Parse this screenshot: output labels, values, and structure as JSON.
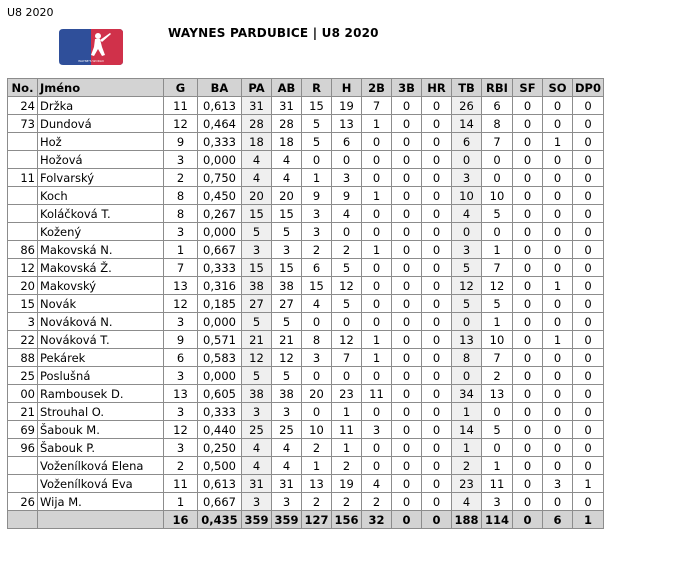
{
  "header": {
    "season": "U8 2020",
    "title": "WAYNES PARDUBICE | U8 2020",
    "logo_text": "WAYNE'S WORLD"
  },
  "colors": {
    "logo_blue": "#2f4f9a",
    "logo_red": "#d0314a",
    "header_bg": "#d3d3d3",
    "shade": "#efefef"
  },
  "table": {
    "columns": [
      "No.",
      "Jméno",
      "G",
      "BA",
      "PA",
      "AB",
      "R",
      "H",
      "2B",
      "3B",
      "HR",
      "TB",
      "RBI",
      "SF",
      "SO",
      "DP0"
    ],
    "rows": [
      [
        "24",
        "Držka",
        "11",
        "0,613",
        "31",
        "31",
        "15",
        "19",
        "7",
        "0",
        "0",
        "26",
        "6",
        "0",
        "0",
        "0"
      ],
      [
        "73",
        "Dundová",
        "12",
        "0,464",
        "28",
        "28",
        "5",
        "13",
        "1",
        "0",
        "0",
        "14",
        "8",
        "0",
        "0",
        "0"
      ],
      [
        "",
        "Hož",
        "9",
        "0,333",
        "18",
        "18",
        "5",
        "6",
        "0",
        "0",
        "0",
        "6",
        "7",
        "0",
        "1",
        "0"
      ],
      [
        "",
        "Hožová",
        "3",
        "0,000",
        "4",
        "4",
        "0",
        "0",
        "0",
        "0",
        "0",
        "0",
        "0",
        "0",
        "0",
        "0"
      ],
      [
        "11",
        "Folvarský",
        "2",
        "0,750",
        "4",
        "4",
        "1",
        "3",
        "0",
        "0",
        "0",
        "3",
        "0",
        "0",
        "0",
        "0"
      ],
      [
        "",
        "Koch",
        "8",
        "0,450",
        "20",
        "20",
        "9",
        "9",
        "1",
        "0",
        "0",
        "10",
        "10",
        "0",
        "0",
        "0"
      ],
      [
        "",
        "Koláčková T.",
        "8",
        "0,267",
        "15",
        "15",
        "3",
        "4",
        "0",
        "0",
        "0",
        "4",
        "5",
        "0",
        "0",
        "0"
      ],
      [
        "",
        "Kožený",
        "3",
        "0,000",
        "5",
        "5",
        "3",
        "0",
        "0",
        "0",
        "0",
        "0",
        "0",
        "0",
        "0",
        "0"
      ],
      [
        "86",
        "Makovská N.",
        "1",
        "0,667",
        "3",
        "3",
        "2",
        "2",
        "1",
        "0",
        "0",
        "3",
        "1",
        "0",
        "0",
        "0"
      ],
      [
        "12",
        "Makovská Ž.",
        "7",
        "0,333",
        "15",
        "15",
        "6",
        "5",
        "0",
        "0",
        "0",
        "5",
        "7",
        "0",
        "0",
        "0"
      ],
      [
        "20",
        "Makovský",
        "13",
        "0,316",
        "38",
        "38",
        "15",
        "12",
        "0",
        "0",
        "0",
        "12",
        "12",
        "0",
        "1",
        "0"
      ],
      [
        "15",
        "Novák",
        "12",
        "0,185",
        "27",
        "27",
        "4",
        "5",
        "0",
        "0",
        "0",
        "5",
        "5",
        "0",
        "0",
        "0"
      ],
      [
        "3",
        "Nováková N.",
        "3",
        "0,000",
        "5",
        "5",
        "0",
        "0",
        "0",
        "0",
        "0",
        "0",
        "1",
        "0",
        "0",
        "0"
      ],
      [
        "22",
        "Nováková T.",
        "9",
        "0,571",
        "21",
        "21",
        "8",
        "12",
        "1",
        "0",
        "0",
        "13",
        "10",
        "0",
        "1",
        "0"
      ],
      [
        "88",
        "Pekárek",
        "6",
        "0,583",
        "12",
        "12",
        "3",
        "7",
        "1",
        "0",
        "0",
        "8",
        "7",
        "0",
        "0",
        "0"
      ],
      [
        "25",
        "Poslušná",
        "3",
        "0,000",
        "5",
        "5",
        "0",
        "0",
        "0",
        "0",
        "0",
        "0",
        "2",
        "0",
        "0",
        "0"
      ],
      [
        "00",
        "Rambousek D.",
        "13",
        "0,605",
        "38",
        "38",
        "20",
        "23",
        "11",
        "0",
        "0",
        "34",
        "13",
        "0",
        "0",
        "0"
      ],
      [
        "21",
        "Strouhal O.",
        "3",
        "0,333",
        "3",
        "3",
        "0",
        "1",
        "0",
        "0",
        "0",
        "1",
        "0",
        "0",
        "0",
        "0"
      ],
      [
        "69",
        "Šabouk M.",
        "12",
        "0,440",
        "25",
        "25",
        "10",
        "11",
        "3",
        "0",
        "0",
        "14",
        "5",
        "0",
        "0",
        "0"
      ],
      [
        "96",
        "Šabouk P.",
        "3",
        "0,250",
        "4",
        "4",
        "2",
        "1",
        "0",
        "0",
        "0",
        "1",
        "0",
        "0",
        "0",
        "0"
      ],
      [
        "",
        "Voženílková Elena",
        "2",
        "0,500",
        "4",
        "4",
        "1",
        "2",
        "0",
        "0",
        "0",
        "2",
        "1",
        "0",
        "0",
        "0"
      ],
      [
        "",
        "Voženílková Eva",
        "11",
        "0,613",
        "31",
        "31",
        "13",
        "19",
        "4",
        "0",
        "0",
        "23",
        "11",
        "0",
        "3",
        "1"
      ],
      [
        "26",
        "Wija M.",
        "1",
        "0,667",
        "3",
        "3",
        "2",
        "2",
        "2",
        "0",
        "0",
        "4",
        "3",
        "0",
        "0",
        "0"
      ]
    ],
    "totals": [
      "",
      "",
      "16",
      "0,435",
      "359",
      "359",
      "127",
      "156",
      "32",
      "0",
      "0",
      "188",
      "114",
      "0",
      "6",
      "1"
    ]
  }
}
